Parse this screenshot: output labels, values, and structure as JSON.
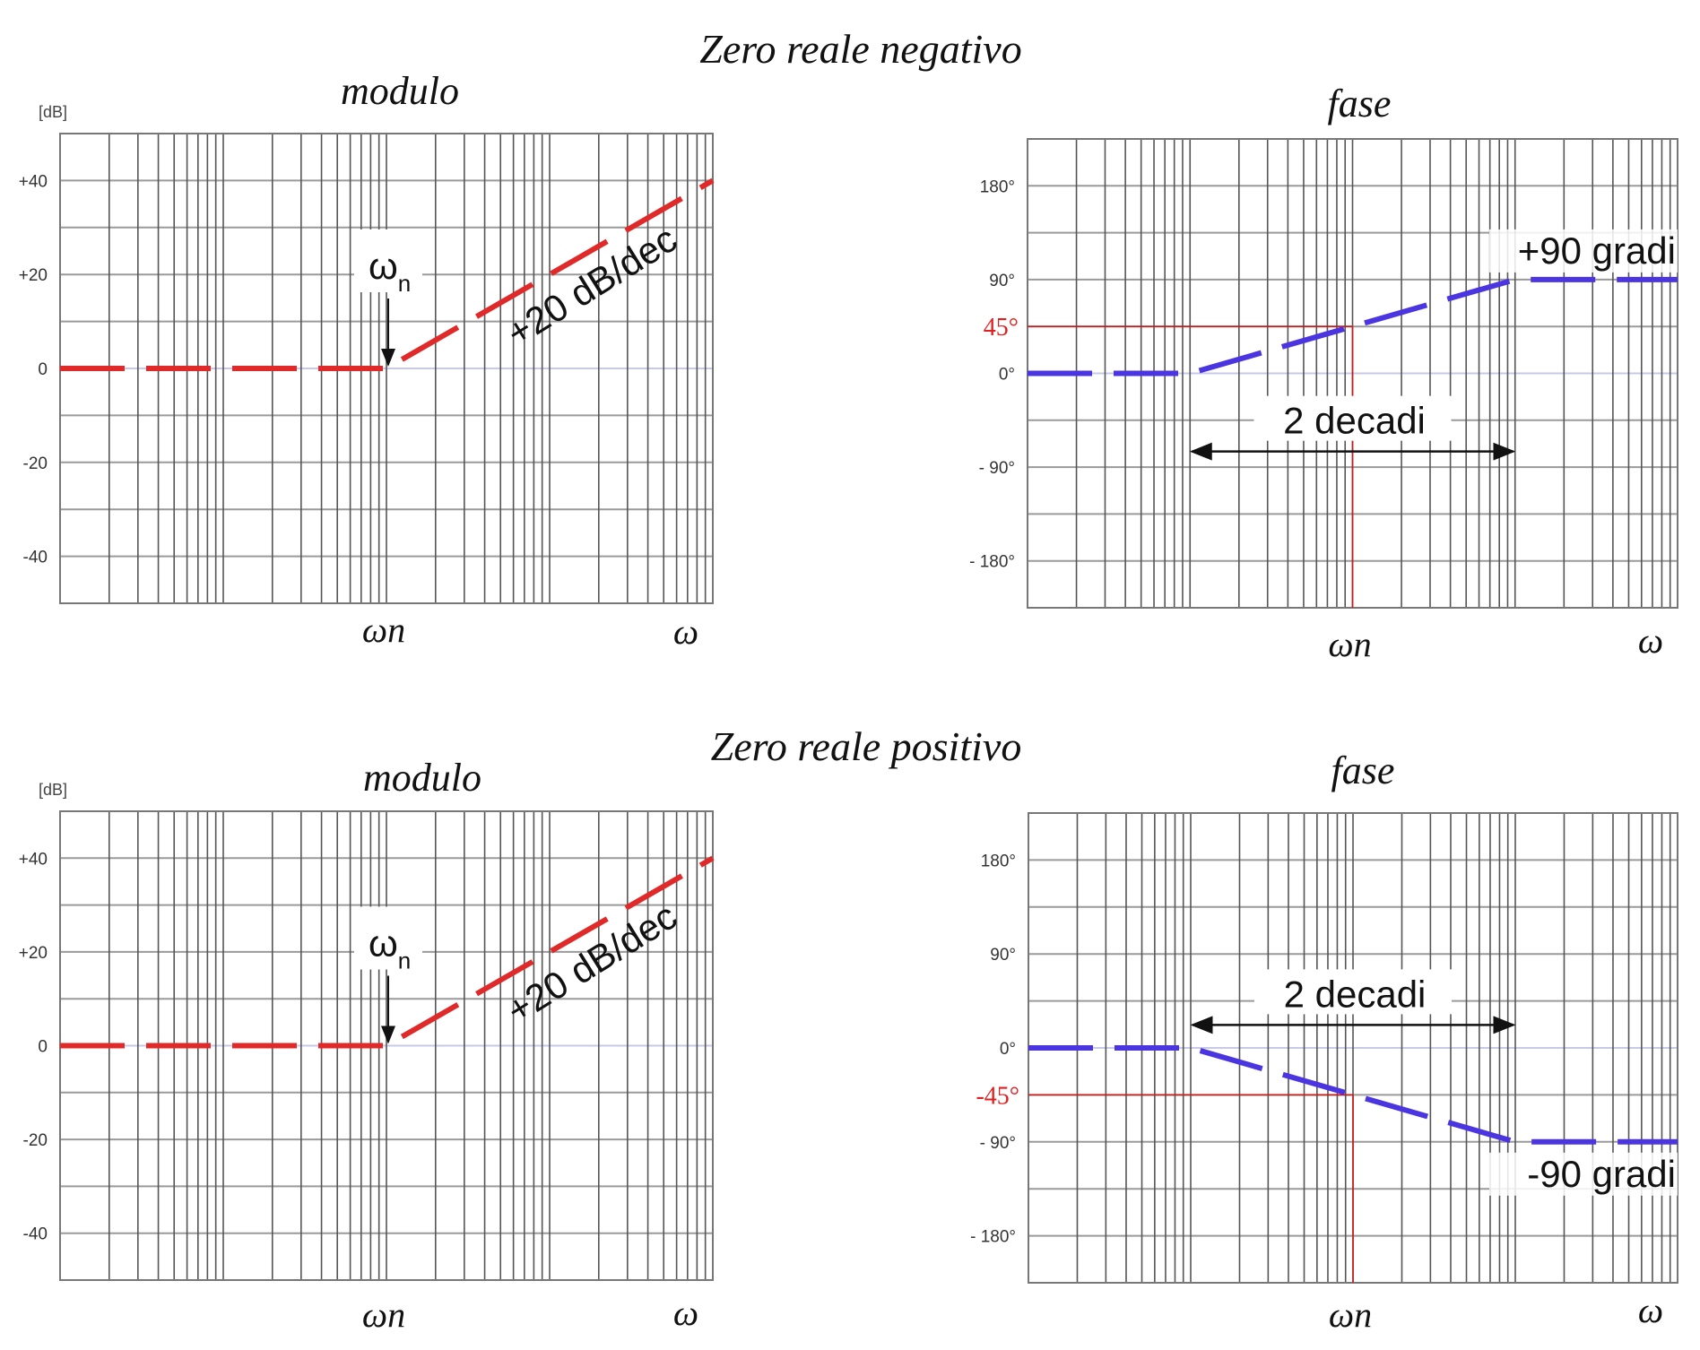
{
  "headings": {
    "top": "Zero reale negativo",
    "bottom": "Zero reale positivo"
  },
  "chart_data": [
    {
      "type": "line",
      "title": "modulo",
      "ylabel": "[dB]",
      "xlabel": "ω",
      "x_marker_label": "ωn",
      "xlim": [
        1,
        10000
      ],
      "xscale": "log",
      "omega_n": 100,
      "ylim": [
        -50,
        50
      ],
      "grid": true,
      "yticks": [
        40,
        20,
        0,
        -20,
        -40
      ],
      "ytick_labels": [
        "+40",
        "+20",
        "0",
        "-20",
        "-40"
      ],
      "series": [
        {
          "name": "asymptote",
          "color": "#e02a2a",
          "x": [
            1,
            100,
            10000
          ],
          "y": [
            0,
            0,
            40
          ]
        }
      ],
      "annotations": {
        "omega_n_symbol": "ω",
        "omega_n_sub": "n",
        "slope_label": "+20 dB/dec"
      }
    },
    {
      "type": "line",
      "title": "fase",
      "xlabel": "ω",
      "x_marker_label": "ωn",
      "xlim": [
        1,
        10000
      ],
      "xscale": "log",
      "omega_n": 100,
      "ylim": [
        -225,
        225
      ],
      "grid": true,
      "yticks": [
        180,
        90,
        0,
        -90,
        -180
      ],
      "ytick_labels": [
        "180°",
        "90°",
        "0°",
        "- 90°",
        "- 180°"
      ],
      "series": [
        {
          "name": "asymptote",
          "color": "#4a35e0",
          "x": [
            1,
            10,
            1000,
            10000
          ],
          "y": [
            0,
            0,
            90,
            90
          ]
        }
      ],
      "annotations": {
        "ref_value": 45,
        "ref_label": "45°",
        "span": [
          10,
          1000
        ],
        "span_y": -75,
        "span_label": "2 decadi",
        "final_label": "+90 gradi"
      }
    },
    {
      "type": "line",
      "title": "modulo",
      "ylabel": "[dB]",
      "xlabel": "ω",
      "x_marker_label": "ωn",
      "xlim": [
        1,
        10000
      ],
      "xscale": "log",
      "omega_n": 100,
      "ylim": [
        -50,
        50
      ],
      "grid": true,
      "yticks": [
        40,
        20,
        0,
        -20,
        -40
      ],
      "ytick_labels": [
        "+40",
        "+20",
        "0",
        "-20",
        "-40"
      ],
      "series": [
        {
          "name": "asymptote",
          "color": "#e02a2a",
          "x": [
            1,
            100,
            10000
          ],
          "y": [
            0,
            0,
            40
          ]
        }
      ],
      "annotations": {
        "omega_n_symbol": "ω",
        "omega_n_sub": "n",
        "slope_label": "+20 dB/dec"
      }
    },
    {
      "type": "line",
      "title": "fase",
      "xlabel": "ω",
      "x_marker_label": "ωn",
      "xlim": [
        1,
        10000
      ],
      "xscale": "log",
      "omega_n": 100,
      "ylim": [
        -225,
        225
      ],
      "grid": true,
      "yticks": [
        180,
        90,
        0,
        -90,
        -180
      ],
      "ytick_labels": [
        "180°",
        "90°",
        "0°",
        "- 90°",
        "- 180°"
      ],
      "series": [
        {
          "name": "asymptote",
          "color": "#4a35e0",
          "x": [
            1,
            10,
            1000,
            10000
          ],
          "y": [
            0,
            0,
            -90,
            -90
          ]
        }
      ],
      "annotations": {
        "ref_value": -45,
        "ref_label": "-45°",
        "span": [
          10,
          1000
        ],
        "span_y": 22,
        "span_label": "2 decadi",
        "final_label": "-90 gradi"
      }
    }
  ]
}
